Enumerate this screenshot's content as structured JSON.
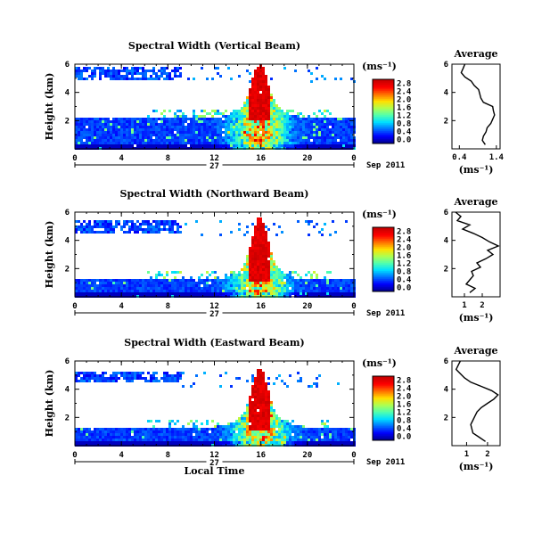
{
  "chart_data": [
    {
      "type": "heatmap",
      "title": "Spectral Width (Vertical Beam)",
      "ylabel": "Height (km)",
      "xlabel": "",
      "xlim": [
        0,
        24
      ],
      "ylim": [
        0,
        6
      ],
      "xticks": [
        "0",
        "4",
        "8",
        "12",
        "16",
        "20",
        "0"
      ],
      "yticks": [
        "2",
        "4",
        "6"
      ],
      "date_label": "27",
      "date_suffix": "Sep 2011",
      "colorbar": {
        "unit": "(ms⁻¹)",
        "ticks": [
          "0.0",
          "0.4",
          "0.8",
          "1.2",
          "1.6",
          "2.0",
          "2.4",
          "2.8"
        ]
      },
      "features": {
        "band_top_km": 2.3,
        "upper_layer_km": [
          5.0,
          5.9
        ],
        "plume_peak_km": 5.0,
        "plume_time_h": 15.8
      },
      "profile": {
        "title": "Average",
        "xlabel": "(ms⁻¹)",
        "xticks": [
          "0.4",
          "1.4"
        ],
        "xlim": [
          0.2,
          1.5
        ],
        "yticks": [
          "2",
          "4",
          "6"
        ],
        "ylim": [
          0,
          6
        ],
        "height_km": [
          0.3,
          0.6,
          0.9,
          1.2,
          1.5,
          1.8,
          2.1,
          2.4,
          2.7,
          3.0,
          3.3,
          3.6,
          3.9,
          4.2,
          4.5,
          4.8,
          5.1,
          5.4,
          5.7,
          6.0
        ],
        "width": [
          1.1,
          1.02,
          1.05,
          1.12,
          1.15,
          1.25,
          1.3,
          1.35,
          1.32,
          1.3,
          1.05,
          0.98,
          0.95,
          0.92,
          0.8,
          0.72,
          0.55,
          0.45,
          0.5,
          0.55
        ]
      }
    },
    {
      "type": "heatmap",
      "title": "Spectral Width (Northward Beam)",
      "ylabel": "Height (km)",
      "xlabel": "",
      "xlim": [
        0,
        24
      ],
      "ylim": [
        0,
        6
      ],
      "xticks": [
        "0",
        "4",
        "8",
        "12",
        "16",
        "20",
        "0"
      ],
      "yticks": [
        "2",
        "4",
        "6"
      ],
      "date_label": "27",
      "date_suffix": "Sep 2011",
      "colorbar": {
        "unit": "(ms⁻¹)",
        "ticks": [
          "0.0",
          "0.4",
          "0.8",
          "1.2",
          "1.6",
          "2.0",
          "2.4",
          "2.8"
        ]
      },
      "features": {
        "band_top_km": 1.3,
        "upper_layer_km": [
          4.6,
          5.5
        ],
        "plume_peak_km": 4.6,
        "plume_time_h": 15.8
      },
      "profile": {
        "title": "Average",
        "xlabel": "(ms⁻¹)",
        "xticks": [
          "1",
          "2"
        ],
        "xlim": [
          0.3,
          3.0
        ],
        "yticks": [
          "2",
          "4",
          "6"
        ],
        "ylim": [
          0,
          6
        ],
        "height_km": [
          0.3,
          0.6,
          0.9,
          1.2,
          1.5,
          1.8,
          2.1,
          2.4,
          2.7,
          3.0,
          3.3,
          3.6,
          3.9,
          4.2,
          4.5,
          4.8,
          5.1,
          5.4,
          5.7,
          6.0
        ],
        "width": [
          1.3,
          1.6,
          1.1,
          1.3,
          1.5,
          1.4,
          1.9,
          1.7,
          2.2,
          2.6,
          2.3,
          2.9,
          2.4,
          2.0,
          1.5,
          0.9,
          1.3,
          0.6,
          0.8,
          0.5
        ]
      }
    },
    {
      "type": "heatmap",
      "title": "Spectral Width (Eastward Beam)",
      "ylabel": "Height (km)",
      "xlabel": "Local Time",
      "xlim": [
        0,
        24
      ],
      "ylim": [
        0,
        6
      ],
      "xticks": [
        "0",
        "4",
        "8",
        "12",
        "16",
        "20",
        "0"
      ],
      "yticks": [
        "2",
        "4",
        "6"
      ],
      "date_label": "27",
      "date_suffix": "Sep 2011",
      "colorbar": {
        "unit": "(ms⁻¹)",
        "ticks": [
          "0.0",
          "0.4",
          "0.8",
          "1.2",
          "1.6",
          "2.0",
          "2.4",
          "2.8"
        ]
      },
      "features": {
        "band_top_km": 1.4,
        "upper_layer_km": [
          4.5,
          5.3
        ],
        "plume_peak_km": 4.4,
        "plume_time_h": 15.8
      },
      "profile": {
        "title": "Average",
        "xlabel": "(ms⁻¹)",
        "xticks": [
          "1",
          "2"
        ],
        "xlim": [
          0.3,
          2.6
        ],
        "yticks": [
          "2",
          "4",
          "6"
        ],
        "ylim": [
          0,
          6
        ],
        "height_km": [
          0.3,
          0.6,
          0.9,
          1.2,
          1.5,
          1.8,
          2.1,
          2.4,
          2.7,
          3.0,
          3.3,
          3.6,
          3.9,
          4.2,
          4.5,
          4.8,
          5.1,
          5.4,
          5.7,
          6.0
        ],
        "width": [
          1.9,
          1.6,
          1.3,
          1.25,
          1.2,
          1.3,
          1.4,
          1.5,
          1.7,
          2.0,
          2.3,
          2.5,
          2.2,
          1.7,
          1.2,
          0.9,
          0.7,
          0.5,
          0.6,
          0.7
        ]
      }
    }
  ]
}
